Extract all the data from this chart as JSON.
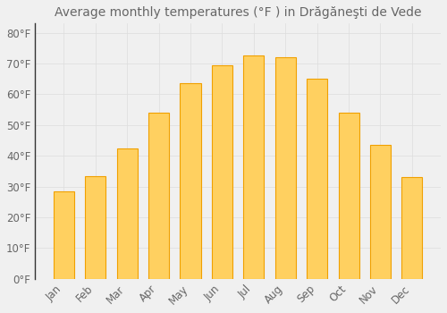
{
  "title": "Average monthly temperatures (°F ) in Drăgăneşti de Vede",
  "months": [
    "Jan",
    "Feb",
    "Mar",
    "Apr",
    "May",
    "Jun",
    "Jul",
    "Aug",
    "Sep",
    "Oct",
    "Nov",
    "Dec"
  ],
  "values": [
    28.5,
    33.5,
    42.5,
    54,
    63.5,
    69.5,
    72.5,
    72,
    65,
    54,
    43.5,
    33
  ],
  "bar_color_top": "#FFB800",
  "bar_color_bottom": "#FFD060",
  "bar_edge_color": "#F0A000",
  "background_color": "#F0F0F0",
  "grid_color": "#DDDDDD",
  "text_color": "#666666",
  "spine_color": "#333333",
  "ylim": [
    0,
    83
  ],
  "yticks": [
    0,
    10,
    20,
    30,
    40,
    50,
    60,
    70,
    80
  ],
  "title_fontsize": 10,
  "tick_fontsize": 8.5
}
